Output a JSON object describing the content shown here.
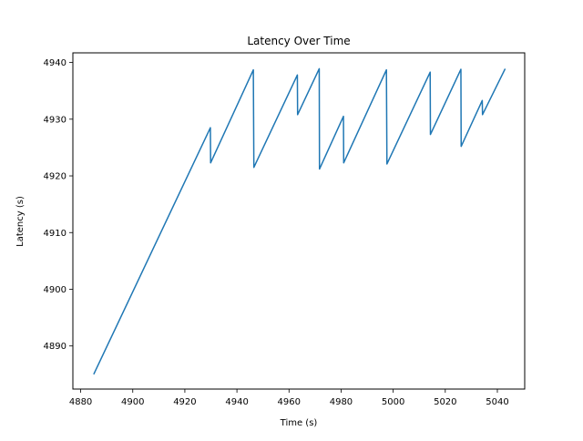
{
  "chart_data": {
    "type": "line",
    "title": "Latency Over Time",
    "xlabel": "Time (s)",
    "ylabel": "Latency (s)",
    "xlim": [
      4877,
      5050.5
    ],
    "ylim": [
      4882.4,
      4941.7
    ],
    "xticks": [
      4880,
      4900,
      4920,
      4940,
      4960,
      4980,
      5000,
      5020,
      5040
    ],
    "yticks": [
      4890,
      4900,
      4910,
      4920,
      4930,
      4940
    ],
    "grid": false,
    "legend": "none",
    "series": [
      {
        "name": "",
        "color": "#1f77b4",
        "x": [
          4885,
          4929.8,
          4929.9,
          4946.3,
          4946.5,
          4963.2,
          4963.3,
          4971.6,
          4971.7,
          4980.9,
          4981.0,
          4997.4,
          4997.6,
          5014.2,
          5014.3,
          5026.0,
          5026.1,
          5034.2,
          5034.3,
          5043
        ],
        "y": [
          4885,
          4928.5,
          4922.3,
          4938.7,
          4921.5,
          4937.8,
          4930.8,
          4938.9,
          4921.2,
          4930.5,
          4922.3,
          4938.7,
          4922.1,
          4938.3,
          4927.3,
          4938.8,
          4925.2,
          4933.3,
          4930.8,
          4938.9
        ]
      }
    ]
  }
}
